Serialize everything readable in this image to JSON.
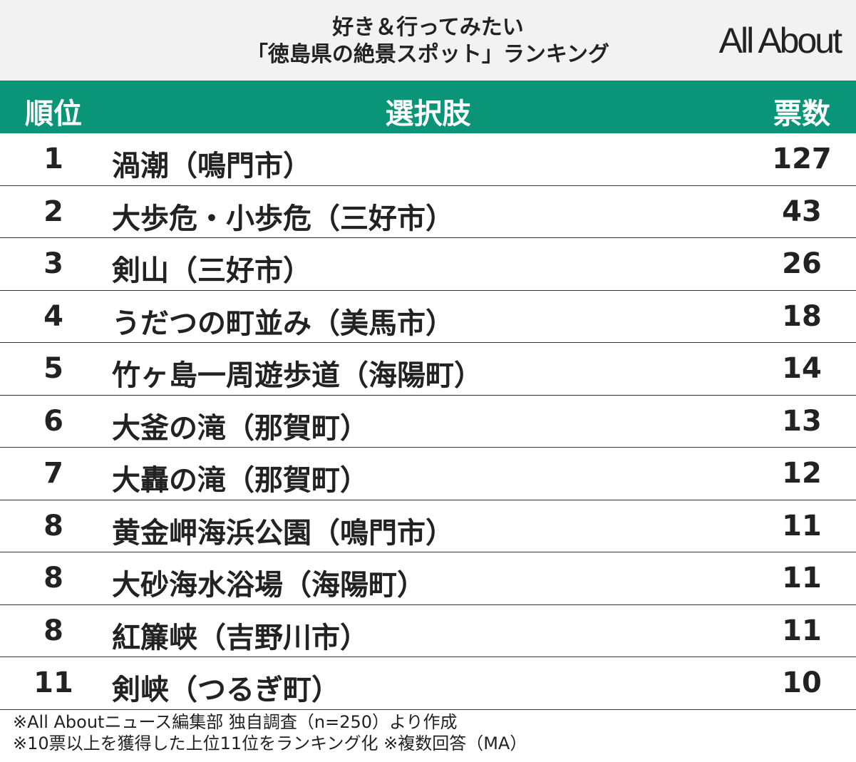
{
  "header": {
    "title_lines": [
      "好き＆行ってみたい",
      "「徳島県の絶景スポット」ランキング"
    ],
    "logo": "All About"
  },
  "table": {
    "columns": [
      "順位",
      "選択肢",
      "票数"
    ],
    "rows": [
      [
        1,
        "渦潮（鳴門市）",
        127
      ],
      [
        2,
        "大歩危・小歩危（三好市）",
        43
      ],
      [
        3,
        "剣山（三好市）",
        26
      ],
      [
        4,
        "うだつの町並み（美馬市）",
        18
      ],
      [
        5,
        "竹ヶ島一周遊歩道（海陽町）",
        14
      ],
      [
        6,
        "大釜の滝（那賀町）",
        13
      ],
      [
        7,
        "大轟の滝（那賀町）",
        12
      ],
      [
        8,
        "黄金岬海浜公園（鳴門市）",
        11
      ],
      [
        8,
        "大砂海水浴場（海陽町）",
        11
      ],
      [
        8,
        "紅簾峡（吉野川市）",
        11
      ],
      [
        11,
        "剣峡（つるぎ町）",
        10
      ]
    ]
  },
  "notes": [
    "※All Aboutニュース編集部 独自調査（n=250）より作成",
    "※10票以上を獲得した上位11位をランキング化 ※複数回答（MA）"
  ]
}
